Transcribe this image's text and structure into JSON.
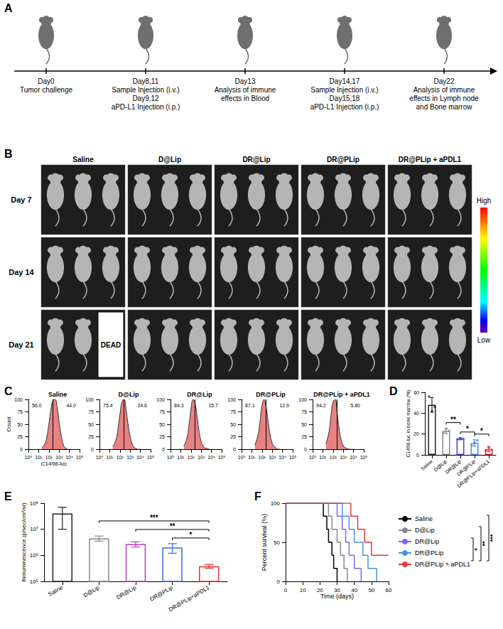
{
  "panel_labels": [
    "A",
    "B",
    "C",
    "D",
    "E",
    "F"
  ],
  "timeline": {
    "events": [
      {
        "lines": [
          "Day0",
          "Tumor challenge"
        ]
      },
      {
        "lines": [
          "Day8,11",
          "Sample Injection (i.v.)",
          "Day9,12",
          "aPD-L1 Injection (i.p.)"
        ]
      },
      {
        "lines": [
          "Day13",
          "Analysis of immune",
          "effects in Blood"
        ]
      },
      {
        "lines": [
          "Day14,17",
          "Sample Injection (i.v.)",
          "Day15,18",
          "aPD-L1 Injection (i.p.)"
        ]
      },
      {
        "lines": [
          "Day22",
          "Analysis of immune",
          "effects in Lymph node",
          "and Bone marrow"
        ]
      }
    ]
  },
  "imaging": {
    "groups": [
      "Saline",
      "D@Lip",
      "DR@Lip",
      "DR@PLip",
      "DR@PLip + aPDL1"
    ],
    "days": [
      "Day 7",
      "Day 14",
      "Day 21"
    ],
    "dead": {
      "group": "Saline",
      "day": "Day 21",
      "label": "DEAD"
    },
    "colorbar": {
      "high": "High",
      "low": "Low"
    }
  },
  "chart_data": [
    {
      "type": "area",
      "title": "Saline",
      "log": "x",
      "grid": false,
      "color": "#e57373",
      "xlabel": "C1498-luc",
      "ylabel": "Count",
      "x": [
        20,
        40,
        63,
        100,
        160,
        250,
        400,
        630,
        1000,
        1600,
        2500,
        4000,
        6300
      ],
      "values": [
        3,
        10,
        25,
        50,
        80,
        98,
        100,
        85,
        55,
        28,
        10,
        3,
        1
      ],
      "xlim": [
        1,
        100000
      ],
      "xticks": [
        {
          "value": 1,
          "label": "10⁰"
        },
        {
          "value": 10,
          "label": "10¹"
        },
        {
          "value": 100,
          "label": "10²"
        },
        {
          "value": 1000,
          "label": "10³"
        },
        {
          "value": 10000,
          "label": "10⁴"
        },
        {
          "value": 100000,
          "label": "10⁵"
        }
      ],
      "ylim": [
        0,
        100
      ],
      "yticks": [
        0,
        25,
        50,
        75,
        100
      ],
      "gate": 250,
      "gate_labels": [
        {
          "value": 56.0,
          "label": "56.0"
        },
        {
          "value": 44.0,
          "label": "44.0"
        }
      ]
    },
    {
      "type": "area",
      "title": "D@Lip",
      "log": "x",
      "grid": false,
      "color": "#e57373",
      "x": [
        20,
        40,
        63,
        100,
        160,
        250,
        400,
        630,
        1000,
        1600,
        2500,
        4000,
        6300
      ],
      "values": [
        5,
        18,
        40,
        70,
        95,
        100,
        80,
        50,
        25,
        10,
        4,
        1,
        0
      ],
      "xlim": [
        1,
        100000
      ],
      "xticks": [
        {
          "value": 1,
          "label": "10⁰"
        },
        {
          "value": 10,
          "label": "10¹"
        },
        {
          "value": 100,
          "label": "10²"
        },
        {
          "value": 1000,
          "label": "10³"
        },
        {
          "value": 10000,
          "label": "10⁴"
        },
        {
          "value": 100000,
          "label": "10⁵"
        }
      ],
      "ylim": [
        0,
        100
      ],
      "yticks": [
        0,
        25,
        50,
        75,
        100
      ],
      "gate": 250,
      "gate_labels": [
        {
          "value": 75.4,
          "label": "75.4"
        },
        {
          "value": 24.6,
          "label": "24.6"
        }
      ]
    },
    {
      "type": "area",
      "title": "DR@Lip",
      "log": "x",
      "grid": false,
      "color": "#e57373",
      "x": [
        20,
        40,
        63,
        100,
        160,
        250,
        400,
        630,
        1000,
        1600,
        2500,
        4000,
        6300
      ],
      "values": [
        6,
        22,
        48,
        80,
        100,
        92,
        65,
        35,
        15,
        6,
        2,
        1,
        0
      ],
      "xlim": [
        1,
        100000
      ],
      "xticks": [
        {
          "value": 1,
          "label": "10⁰"
        },
        {
          "value": 10,
          "label": "10¹"
        },
        {
          "value": 100,
          "label": "10²"
        },
        {
          "value": 1000,
          "label": "10³"
        },
        {
          "value": 10000,
          "label": "10⁴"
        },
        {
          "value": 100000,
          "label": "10⁵"
        }
      ],
      "ylim": [
        0,
        100
      ],
      "yticks": [
        0,
        25,
        50,
        75,
        100
      ],
      "gate": 250,
      "gate_labels": [
        {
          "value": 84.3,
          "label": "84.3"
        },
        {
          "value": 15.7,
          "label": "15.7"
        }
      ]
    },
    {
      "type": "area",
      "title": "DR@PLip",
      "log": "x",
      "grid": false,
      "color": "#e57373",
      "x": [
        20,
        40,
        63,
        100,
        160,
        250,
        400,
        630,
        1000,
        1600,
        2500,
        4000,
        6300
      ],
      "values": [
        8,
        28,
        55,
        88,
        100,
        85,
        55,
        28,
        12,
        5,
        2,
        0,
        0
      ],
      "xlim": [
        1,
        100000
      ],
      "xticks": [
        {
          "value": 1,
          "label": "10⁰"
        },
        {
          "value": 10,
          "label": "10¹"
        },
        {
          "value": 100,
          "label": "10²"
        },
        {
          "value": 1000,
          "label": "10³"
        },
        {
          "value": 10000,
          "label": "10⁴"
        },
        {
          "value": 100000,
          "label": "10⁵"
        }
      ],
      "ylim": [
        0,
        100
      ],
      "yticks": [
        0,
        25,
        50,
        75,
        100
      ],
      "gate": 250,
      "gate_labels": [
        {
          "value": 87.1,
          "label": "87.1"
        },
        {
          "value": 12.9,
          "label": "12.9"
        }
      ]
    },
    {
      "type": "area",
      "title": "DR@PLip + aPDL1",
      "log": "x",
      "grid": false,
      "color": "#e57373",
      "x": [
        20,
        40,
        63,
        100,
        160,
        250,
        400,
        630,
        1000,
        1600,
        2500,
        4000,
        6300
      ],
      "values": [
        10,
        35,
        68,
        95,
        100,
        72,
        40,
        18,
        7,
        3,
        1,
        0,
        0
      ],
      "xlim": [
        1,
        100000
      ],
      "xticks": [
        {
          "value": 1,
          "label": "10⁰"
        },
        {
          "value": 10,
          "label": "10¹"
        },
        {
          "value": 100,
          "label": "10²"
        },
        {
          "value": 1000,
          "label": "10³"
        },
        {
          "value": 10000,
          "label": "10⁴"
        },
        {
          "value": 100000,
          "label": "10⁵"
        }
      ],
      "ylim": [
        0,
        100
      ],
      "yticks": [
        0,
        25,
        50,
        75,
        100
      ],
      "gate": 250,
      "gate_labels": [
        {
          "value": 94.2,
          "label": "94.2"
        },
        {
          "value": 5.8,
          "label": "5.80"
        }
      ]
    },
    {
      "type": "bar",
      "grid": false,
      "ylabel": "C1498-luc in bone marrow (%)",
      "categories": [
        "Saline",
        "D@Lip",
        "DR@Lip",
        "DR@PLip",
        "DR@PLip+aPDL1"
      ],
      "values": [
        48,
        23,
        15.5,
        11.5,
        5.5
      ],
      "errors": [
        7,
        2.5,
        1,
        3,
        2.5
      ],
      "points": [
        [
          56,
          42,
          46
        ],
        [
          21,
          25,
          23
        ],
        [
          15,
          16,
          15.5
        ],
        [
          9,
          12,
          14
        ],
        [
          4,
          7,
          5
        ]
      ],
      "colors": [
        "#222222",
        "#888888",
        "#4a4adf",
        "#4a90e2",
        "#e03030"
      ],
      "ylim": [
        0,
        60
      ],
      "yticks": [
        0,
        20,
        40,
        60
      ],
      "significance": [
        {
          "from": "D@Lip",
          "to": "DR@Lip",
          "label": "**"
        },
        {
          "from": "DR@Lip",
          "to": "DR@PLip",
          "label": "*"
        },
        {
          "from": "DR@PLip",
          "to": "DR@PLip+aPDL1",
          "label": "*"
        }
      ]
    },
    {
      "type": "bar",
      "log": "y",
      "grid": false,
      "ylabel": "Bioluminescence (p/sec/cm²/sr)",
      "categories": [
        "Saline",
        "D@Lip",
        "DR@Lip",
        "DR@PLip",
        "DR@PLip+aPDL1"
      ],
      "values": [
        40000000,
        4500000,
        2700000,
        2000000,
        380000
      ],
      "errors": [
        30000000,
        1000000,
        600000,
        800000,
        60000
      ],
      "colors": [
        "#222222",
        "#888888",
        "#b040c0",
        "#3a6fd8",
        "#e03030"
      ],
      "ylim": [
        100000,
        100000000
      ],
      "yticks": [
        {
          "value": 100000,
          "label": "10⁵"
        },
        {
          "value": 1000000,
          "label": "10⁶"
        },
        {
          "value": 10000000,
          "label": "10⁷"
        },
        {
          "value": 100000000,
          "label": "10⁸"
        }
      ],
      "significance": [
        {
          "from": "DR@PLip",
          "to": "DR@PLip+aPDL1",
          "label": "*"
        },
        {
          "from": "DR@Lip",
          "to": "DR@PLip+aPDL1",
          "label": "**"
        },
        {
          "from": "D@Lip",
          "to": "DR@PLip+aPDL1",
          "label": "***"
        }
      ]
    },
    {
      "type": "line",
      "line_style": "step",
      "grid": false,
      "legend": "right",
      "xlabel": "Time (days)",
      "ylabel": "Percent survival (%)",
      "xlim": [
        0,
        60
      ],
      "xticks": [
        0,
        10,
        20,
        30,
        40,
        50,
        60
      ],
      "ylim": [
        0,
        100
      ],
      "yticks": [
        0,
        50,
        100
      ],
      "series": [
        {
          "name": "Saline",
          "color": "#000000",
          "x": [
            0,
            22,
            24,
            25,
            27,
            28,
            30
          ],
          "values": [
            100,
            83.3,
            66.7,
            50,
            33.3,
            16.7,
            0
          ]
        },
        {
          "name": "D@Lip",
          "color": "#888888",
          "x": [
            0,
            25,
            27,
            30,
            32,
            34,
            36
          ],
          "values": [
            100,
            83.3,
            66.7,
            50,
            33.3,
            16.7,
            0
          ]
        },
        {
          "name": "DR@Lip",
          "color": "#7b68ee",
          "x": [
            0,
            30,
            33,
            35,
            37,
            40,
            44
          ],
          "values": [
            100,
            83.3,
            66.7,
            50,
            33.3,
            16.7,
            0
          ]
        },
        {
          "name": "DR@PLip",
          "color": "#4a90e2",
          "x": [
            0,
            33,
            37,
            40,
            45,
            48,
            53
          ],
          "values": [
            100,
            83.3,
            66.7,
            50,
            33.3,
            16.7,
            0
          ]
        },
        {
          "name": "DR@PLip + aPDL1",
          "color": "#e53935",
          "x": [
            0,
            38,
            42,
            46,
            50,
            60
          ],
          "values": [
            100,
            83.3,
            66.7,
            50,
            33.3,
            33.3
          ]
        }
      ],
      "significance": [
        {
          "from": "DR@Lip",
          "to": "DR@PLip + aPDL1",
          "label": "*"
        },
        {
          "from": "D@Lip",
          "to": "DR@PLip + aPDL1",
          "label": "**"
        },
        {
          "from": "Saline",
          "to": "DR@PLip + aPDL1",
          "label": "***"
        }
      ]
    }
  ]
}
